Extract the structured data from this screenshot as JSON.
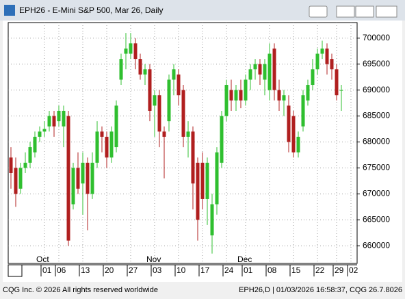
{
  "window_title": "EPH26 - E-Mini S&P 500, Mar 26, Daily",
  "status_left": "CQG Inc. © 2026 All rights reserved worldwide",
  "status_right": "EPH26,D | 01/03/2026 16:58:37, CQG 26.7.8026",
  "chart_data": {
    "type": "candlestick",
    "categories": [
      null,
      null,
      null,
      null,
      null,
      null,
      null,
      "01",
      null,
      null,
      "06",
      null,
      null,
      null,
      null,
      "13",
      null,
      null,
      null,
      null,
      "20",
      null,
      null,
      null,
      null,
      "27",
      null,
      null,
      null,
      null,
      "03",
      null,
      null,
      null,
      null,
      "10",
      null,
      null,
      null,
      null,
      "17",
      null,
      null,
      null,
      null,
      "24",
      null,
      null,
      null,
      "01",
      null,
      null,
      null,
      null,
      "08",
      null,
      null,
      null,
      null,
      "15",
      null,
      null,
      null,
      null,
      "22",
      null,
      null,
      null,
      "29",
      null,
      null,
      "02"
    ],
    "month_labels": [
      null,
      null,
      null,
      null,
      null,
      null,
      null,
      "Oct",
      null,
      null,
      null,
      null,
      null,
      null,
      null,
      null,
      null,
      null,
      null,
      null,
      null,
      null,
      null,
      null,
      null,
      null,
      null,
      null,
      null,
      null,
      "Nov",
      null,
      null,
      null,
      null,
      null,
      null,
      null,
      null,
      null,
      null,
      null,
      null,
      null,
      null,
      null,
      null,
      null,
      null,
      "Dec",
      null,
      null,
      null,
      null,
      null,
      null,
      null,
      null,
      null,
      null,
      null,
      null,
      null,
      null,
      null,
      null,
      null,
      null,
      null,
      null,
      null,
      null
    ],
    "open": [
      677000,
      675000,
      671000,
      675000,
      676000,
      678000,
      681000,
      682000,
      683000,
      685000,
      684000,
      683000,
      685000,
      668000,
      675000,
      672000,
      676000,
      670000,
      676000,
      682000,
      681000,
      677000,
      679000,
      692000,
      697000,
      697000,
      699000,
      696000,
      693000,
      694000,
      687000,
      689000,
      682000,
      684000,
      692000,
      693000,
      690000,
      681000,
      682000,
      676000,
      676000,
      669000,
      662000,
      668000,
      676000,
      685000,
      690000,
      688000,
      690000,
      688000,
      692000,
      694000,
      695000,
      692000,
      690000,
      698000,
      690000,
      688000,
      687000,
      685000,
      678000,
      683000,
      688000,
      691000,
      694000,
      697000,
      698000,
      696000,
      694000,
      690000,
      null,
      null
    ],
    "high": [
      679000,
      677000,
      676000,
      678000,
      680000,
      682000,
      683000,
      684000,
      686000,
      686000,
      687000,
      687000,
      686000,
      676000,
      678000,
      678000,
      677000,
      678000,
      684000,
      683000,
      682000,
      683000,
      688000,
      697000,
      701000,
      701000,
      700000,
      697000,
      695000,
      695000,
      690000,
      690000,
      683000,
      693000,
      695000,
      694000,
      691000,
      684000,
      683000,
      677000,
      678000,
      677000,
      670000,
      679000,
      686000,
      692000,
      692000,
      691000,
      692000,
      693000,
      695000,
      696000,
      696000,
      696000,
      699000,
      699000,
      692000,
      690000,
      689000,
      686000,
      682000,
      690000,
      692000,
      696000,
      698000,
      699500,
      699000,
      697000,
      695000,
      691000,
      null,
      null
    ],
    "low": [
      671000,
      667500,
      670000,
      674000,
      675000,
      677000,
      680000,
      681000,
      682000,
      681000,
      683000,
      679000,
      660000,
      667000,
      670000,
      666000,
      663000,
      669000,
      675000,
      678000,
      675000,
      676000,
      678000,
      691000,
      694000,
      696000,
      694000,
      692000,
      691000,
      684000,
      681000,
      679000,
      673000,
      682000,
      689000,
      687000,
      679000,
      677000,
      667000,
      661000,
      667000,
      664000,
      658500,
      666000,
      675000,
      684000,
      686000,
      686000,
      686500,
      687000,
      690000,
      692000,
      691000,
      689000,
      688000,
      688000,
      686000,
      685000,
      678000,
      677000,
      677000,
      682000,
      687000,
      690000,
      693000,
      696000,
      693000,
      692000,
      688000,
      686000,
      null,
      null
    ],
    "close": [
      674000,
      670000,
      675000,
      676000,
      679000,
      681000,
      682000,
      682500,
      685000,
      683000,
      686000,
      686000,
      661000,
      675000,
      671000,
      676000,
      670000,
      676000,
      682000,
      681000,
      677000,
      682000,
      687000,
      696000,
      698000,
      699000,
      696000,
      693000,
      694000,
      686000,
      689000,
      682000,
      681000,
      692000,
      694000,
      689000,
      681000,
      682000,
      672000,
      665000,
      669000,
      676000,
      668000,
      678000,
      685000,
      691000,
      688000,
      690000,
      688000,
      692000,
      694000,
      695000,
      693000,
      695000,
      697000,
      690000,
      688000,
      689000,
      680000,
      678000,
      681000,
      689000,
      691000,
      694000,
      697000,
      698000,
      695000,
      694000,
      689000,
      690000,
      null,
      null
    ],
    "up_color": "#2fbf2f",
    "down_color": "#b01f1f",
    "ylim": [
      656600,
      703000
    ],
    "yticks": [
      660000,
      665000,
      670000,
      675000,
      680000,
      685000,
      690000,
      695000,
      700000
    ],
    "grid": true
  }
}
